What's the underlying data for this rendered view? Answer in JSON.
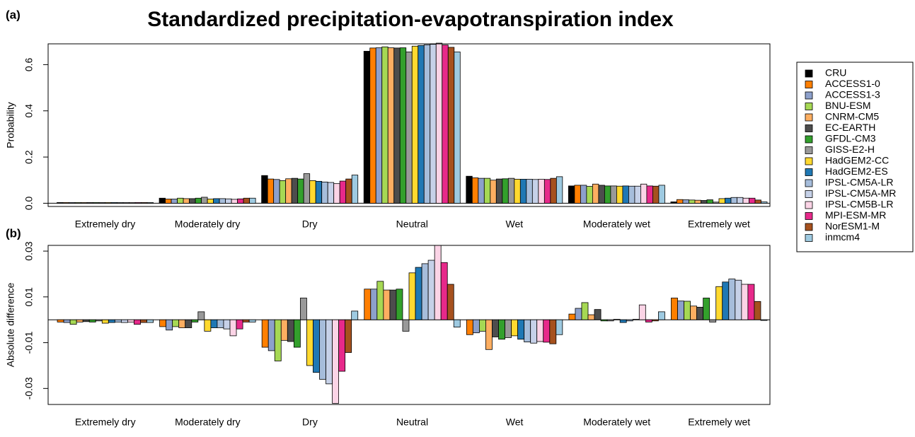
{
  "title": "Standardized precipitation-evapotranspiration index",
  "legend": {
    "series": [
      {
        "name": "CRU",
        "color": "#000000"
      },
      {
        "name": "ACCESS1-0",
        "color": "#ff7f00"
      },
      {
        "name": "ACCESS1-3",
        "color": "#8da0cb"
      },
      {
        "name": "BNU-ESM",
        "color": "#a6d854"
      },
      {
        "name": "CNRM-CM5",
        "color": "#fdae61"
      },
      {
        "name": "EC-EARTH",
        "color": "#4d4d4d"
      },
      {
        "name": "GFDL-CM3",
        "color": "#33a02c"
      },
      {
        "name": "GISS-E2-H",
        "color": "#999999"
      },
      {
        "name": "HadGEM2-CC",
        "color": "#ffd92f"
      },
      {
        "name": "HadGEM2-ES",
        "color": "#1f78b4"
      },
      {
        "name": "IPSL-CM5A-LR",
        "color": "#a6bddb"
      },
      {
        "name": "IPSL-CM5A-MR",
        "color": "#c6d1e8"
      },
      {
        "name": "IPSL-CM5B-LR",
        "color": "#fbd4e6"
      },
      {
        "name": "MPI-ESM-MR",
        "color": "#e7298a"
      },
      {
        "name": "NorESM1-M",
        "color": "#a6511e"
      },
      {
        "name": "inmcm4",
        "color": "#9ecae1"
      }
    ]
  },
  "chart_data": [
    {
      "type": "bar",
      "label": "(a)",
      "y_label": "Probability",
      "categories": [
        "Extremely dry",
        "Moderately dry",
        "Dry",
        "Neutral",
        "Wet",
        "Moderately wet",
        "Extremely wet"
      ],
      "ylim": [
        -0.014,
        0.69
      ],
      "yticks": [
        {
          "value": 0,
          "label": "0.0"
        },
        0.2,
        0.4,
        0.6
      ],
      "series_values": [
        [
          0.003,
          0.022,
          0.12,
          0.658,
          0.117,
          0.075,
          0.006
        ],
        [
          0.003,
          0.018,
          0.105,
          0.672,
          0.11,
          0.078,
          0.016
        ],
        [
          0.003,
          0.018,
          0.103,
          0.673,
          0.108,
          0.078,
          0.015
        ],
        [
          0.003,
          0.022,
          0.098,
          0.677,
          0.108,
          0.073,
          0.014
        ],
        [
          0.003,
          0.02,
          0.106,
          0.673,
          0.1,
          0.083,
          0.013
        ],
        [
          0.003,
          0.02,
          0.108,
          0.672,
          0.105,
          0.078,
          0.012
        ],
        [
          0.003,
          0.022,
          0.105,
          0.673,
          0.106,
          0.075,
          0.015
        ],
        [
          0.003,
          0.026,
          0.128,
          0.655,
          0.108,
          0.075,
          0.005
        ],
        [
          0.003,
          0.018,
          0.098,
          0.68,
          0.104,
          0.074,
          0.02
        ],
        [
          0.003,
          0.02,
          0.095,
          0.683,
          0.104,
          0.075,
          0.022
        ],
        [
          0.003,
          0.02,
          0.092,
          0.686,
          0.104,
          0.074,
          0.025
        ],
        [
          0.003,
          0.019,
          0.09,
          0.688,
          0.103,
          0.074,
          0.025
        ],
        [
          0.003,
          0.017,
          0.085,
          0.693,
          0.104,
          0.083,
          0.022
        ],
        [
          0.003,
          0.019,
          0.096,
          0.685,
          0.103,
          0.075,
          0.022
        ],
        [
          0.003,
          0.022,
          0.105,
          0.675,
          0.108,
          0.074,
          0.014
        ],
        [
          0.003,
          0.022,
          0.122,
          0.655,
          0.115,
          0.078,
          0.006
        ]
      ]
    },
    {
      "type": "bar",
      "label": "(b)",
      "y_label": "Absolute difference",
      "categories": [
        "Extremely dry",
        "Moderately dry",
        "Dry",
        "Neutral",
        "Wet",
        "Moderately wet",
        "Extremely wet"
      ],
      "ylim": [
        -0.037,
        0.0325
      ],
      "yticks": [
        -0.03,
        -0.01,
        0.01,
        0.03
      ],
      "series_values": [
        [
          -0.001,
          -0.003,
          -0.012,
          0.0134,
          -0.0065,
          0.0025,
          0.0095
        ],
        [
          -0.0012,
          -0.0045,
          -0.0135,
          0.0134,
          -0.0057,
          0.005,
          0.0082
        ],
        [
          -0.002,
          -0.003,
          -0.018,
          0.0168,
          -0.005,
          0.0075,
          0.0081
        ],
        [
          -0.001,
          -0.0035,
          -0.009,
          0.013,
          -0.013,
          0.0022,
          0.006
        ],
        [
          -0.0008,
          -0.0035,
          -0.0095,
          0.013,
          -0.0075,
          0.0045,
          0.0055
        ],
        [
          -0.001,
          -0.001,
          -0.012,
          0.0134,
          -0.0085,
          -0.0005,
          0.0095
        ],
        [
          -0.0005,
          0.0035,
          0.0095,
          -0.005,
          -0.0078,
          -0.0005,
          -0.001
        ],
        [
          -0.0015,
          -0.005,
          -0.02,
          0.0205,
          -0.007,
          0.0002,
          0.0145
        ],
        [
          -0.0012,
          -0.0035,
          -0.023,
          0.0229,
          -0.0085,
          -0.0012,
          0.0165
        ],
        [
          -0.001,
          -0.0035,
          -0.026,
          0.0245,
          -0.0097,
          -0.0005,
          0.0178
        ],
        [
          -0.0012,
          -0.004,
          -0.028,
          0.026,
          -0.0102,
          0.0002,
          0.0173
        ],
        [
          -0.001,
          -0.007,
          -0.0365,
          0.0325,
          -0.0095,
          0.0065,
          0.0155
        ],
        [
          -0.002,
          -0.004,
          -0.0225,
          0.025,
          -0.0098,
          -0.001,
          0.0155
        ],
        [
          -0.0012,
          -0.001,
          -0.0143,
          0.0155,
          -0.0105,
          -0.0005,
          0.008
        ],
        [
          -0.0012,
          -0.001,
          0.0038,
          -0.0032,
          -0.0065,
          0.0035,
          -0.0003
        ]
      ]
    }
  ]
}
